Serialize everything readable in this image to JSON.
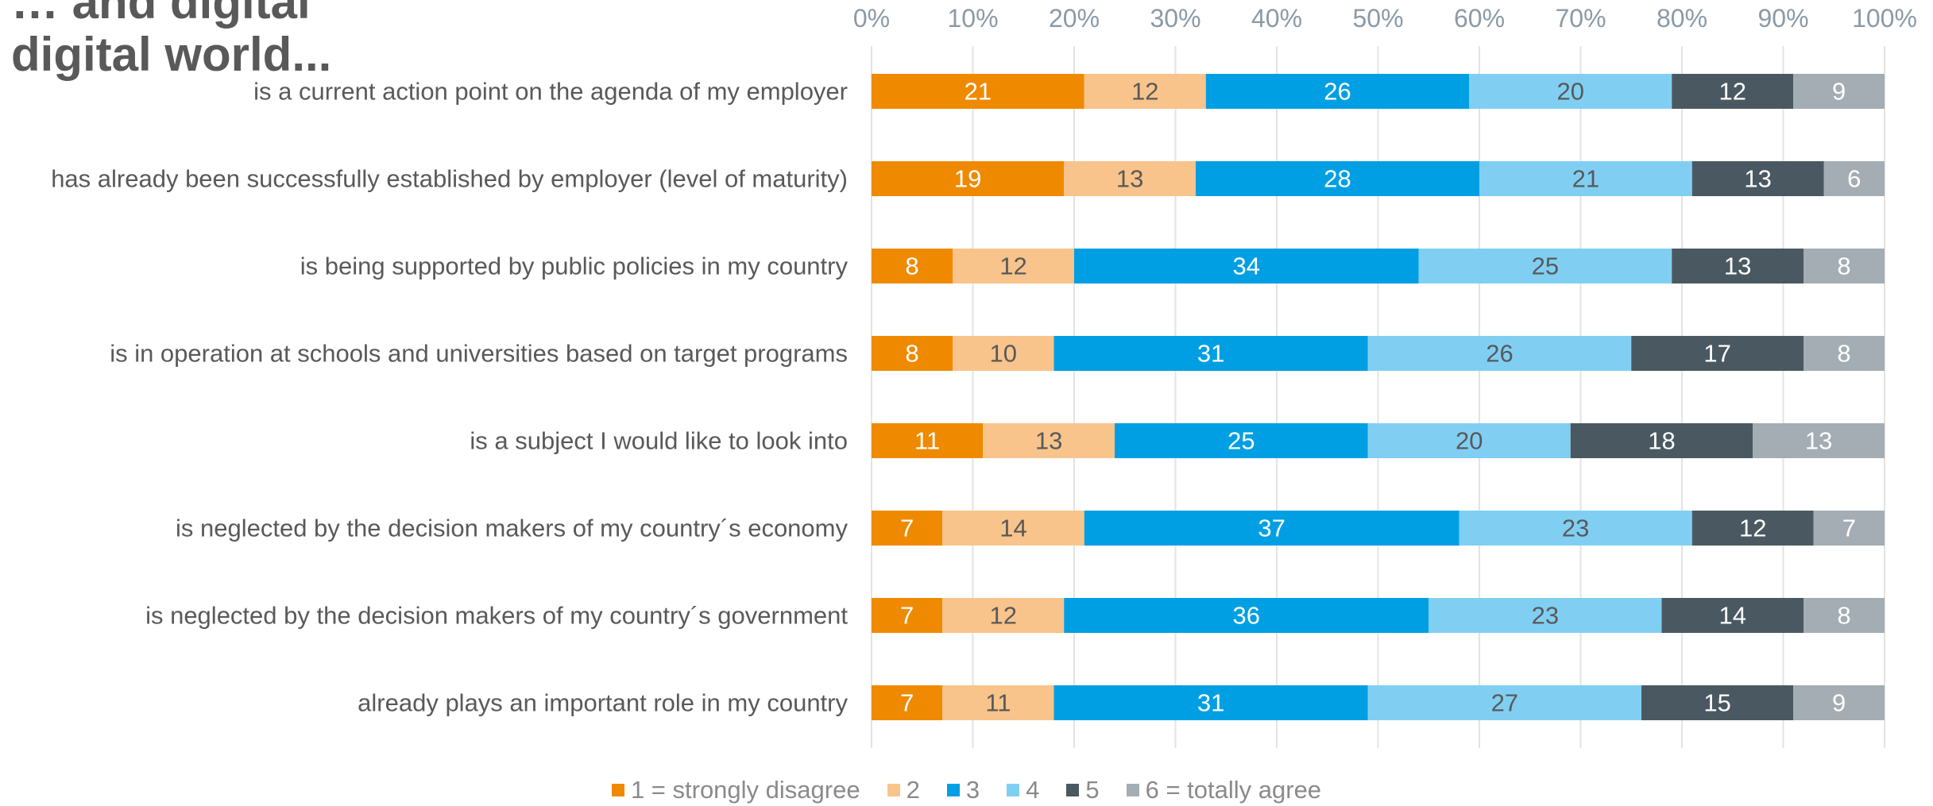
{
  "title_lines": [
    "… and digital",
    "digital world..."
  ],
  "chart_data": {
    "type": "bar",
    "orientation": "horizontal",
    "stacked": "percent",
    "title": "",
    "xlabel": "",
    "ylabel": "",
    "xlim": [
      0,
      100
    ],
    "x_ticks": [
      "0%",
      "10%",
      "20%",
      "30%",
      "40%",
      "50%",
      "60%",
      "70%",
      "80%",
      "90%",
      "100%"
    ],
    "grid": true,
    "legend_position": "bottom",
    "categories": [
      "is a current action point on the agenda of my employer",
      "has already been successfully established by employer (level of maturity)",
      "is being supported by public policies in my country",
      "is in operation at schools and universities based on target programs",
      "is a subject I would like to look into",
      "is neglected by the decision makers of my country´s economy",
      "is neglected by the decision makers of my country´s government",
      "already plays an important role in my country"
    ],
    "series": [
      {
        "name": "1 = strongly disagree",
        "color": "#ef8a00",
        "label_color": "#ffffff",
        "values": [
          21,
          19,
          8,
          8,
          11,
          7,
          7,
          7
        ]
      },
      {
        "name": "2",
        "color": "#f8c48c",
        "label_color": "#595959",
        "values": [
          12,
          13,
          12,
          10,
          13,
          14,
          12,
          11
        ]
      },
      {
        "name": "3",
        "color": "#009fe3",
        "label_color": "#ffffff",
        "values": [
          26,
          28,
          34,
          31,
          25,
          37,
          36,
          31
        ]
      },
      {
        "name": "4",
        "color": "#80cff3",
        "label_color": "#595959",
        "values": [
          20,
          21,
          25,
          26,
          20,
          23,
          23,
          27
        ]
      },
      {
        "name": "5",
        "color": "#4a5961",
        "label_color": "#ffffff",
        "values": [
          12,
          13,
          13,
          17,
          18,
          12,
          14,
          15
        ]
      },
      {
        "name": "6 = totally agree",
        "color": "#a3adb3",
        "label_color": "#ffffff",
        "values": [
          9,
          6,
          8,
          8,
          13,
          7,
          8,
          9
        ]
      }
    ]
  }
}
